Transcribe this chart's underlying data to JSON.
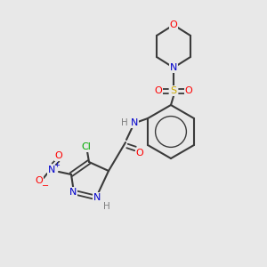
{
  "background_color": "#e8e8e8",
  "bond_color": "#3a3a3a",
  "atom_colors": {
    "O": "#ff0000",
    "N": "#0000cc",
    "S": "#ccaa00",
    "Cl": "#00aa00",
    "H": "#808080",
    "C": "#3a3a3a"
  }
}
